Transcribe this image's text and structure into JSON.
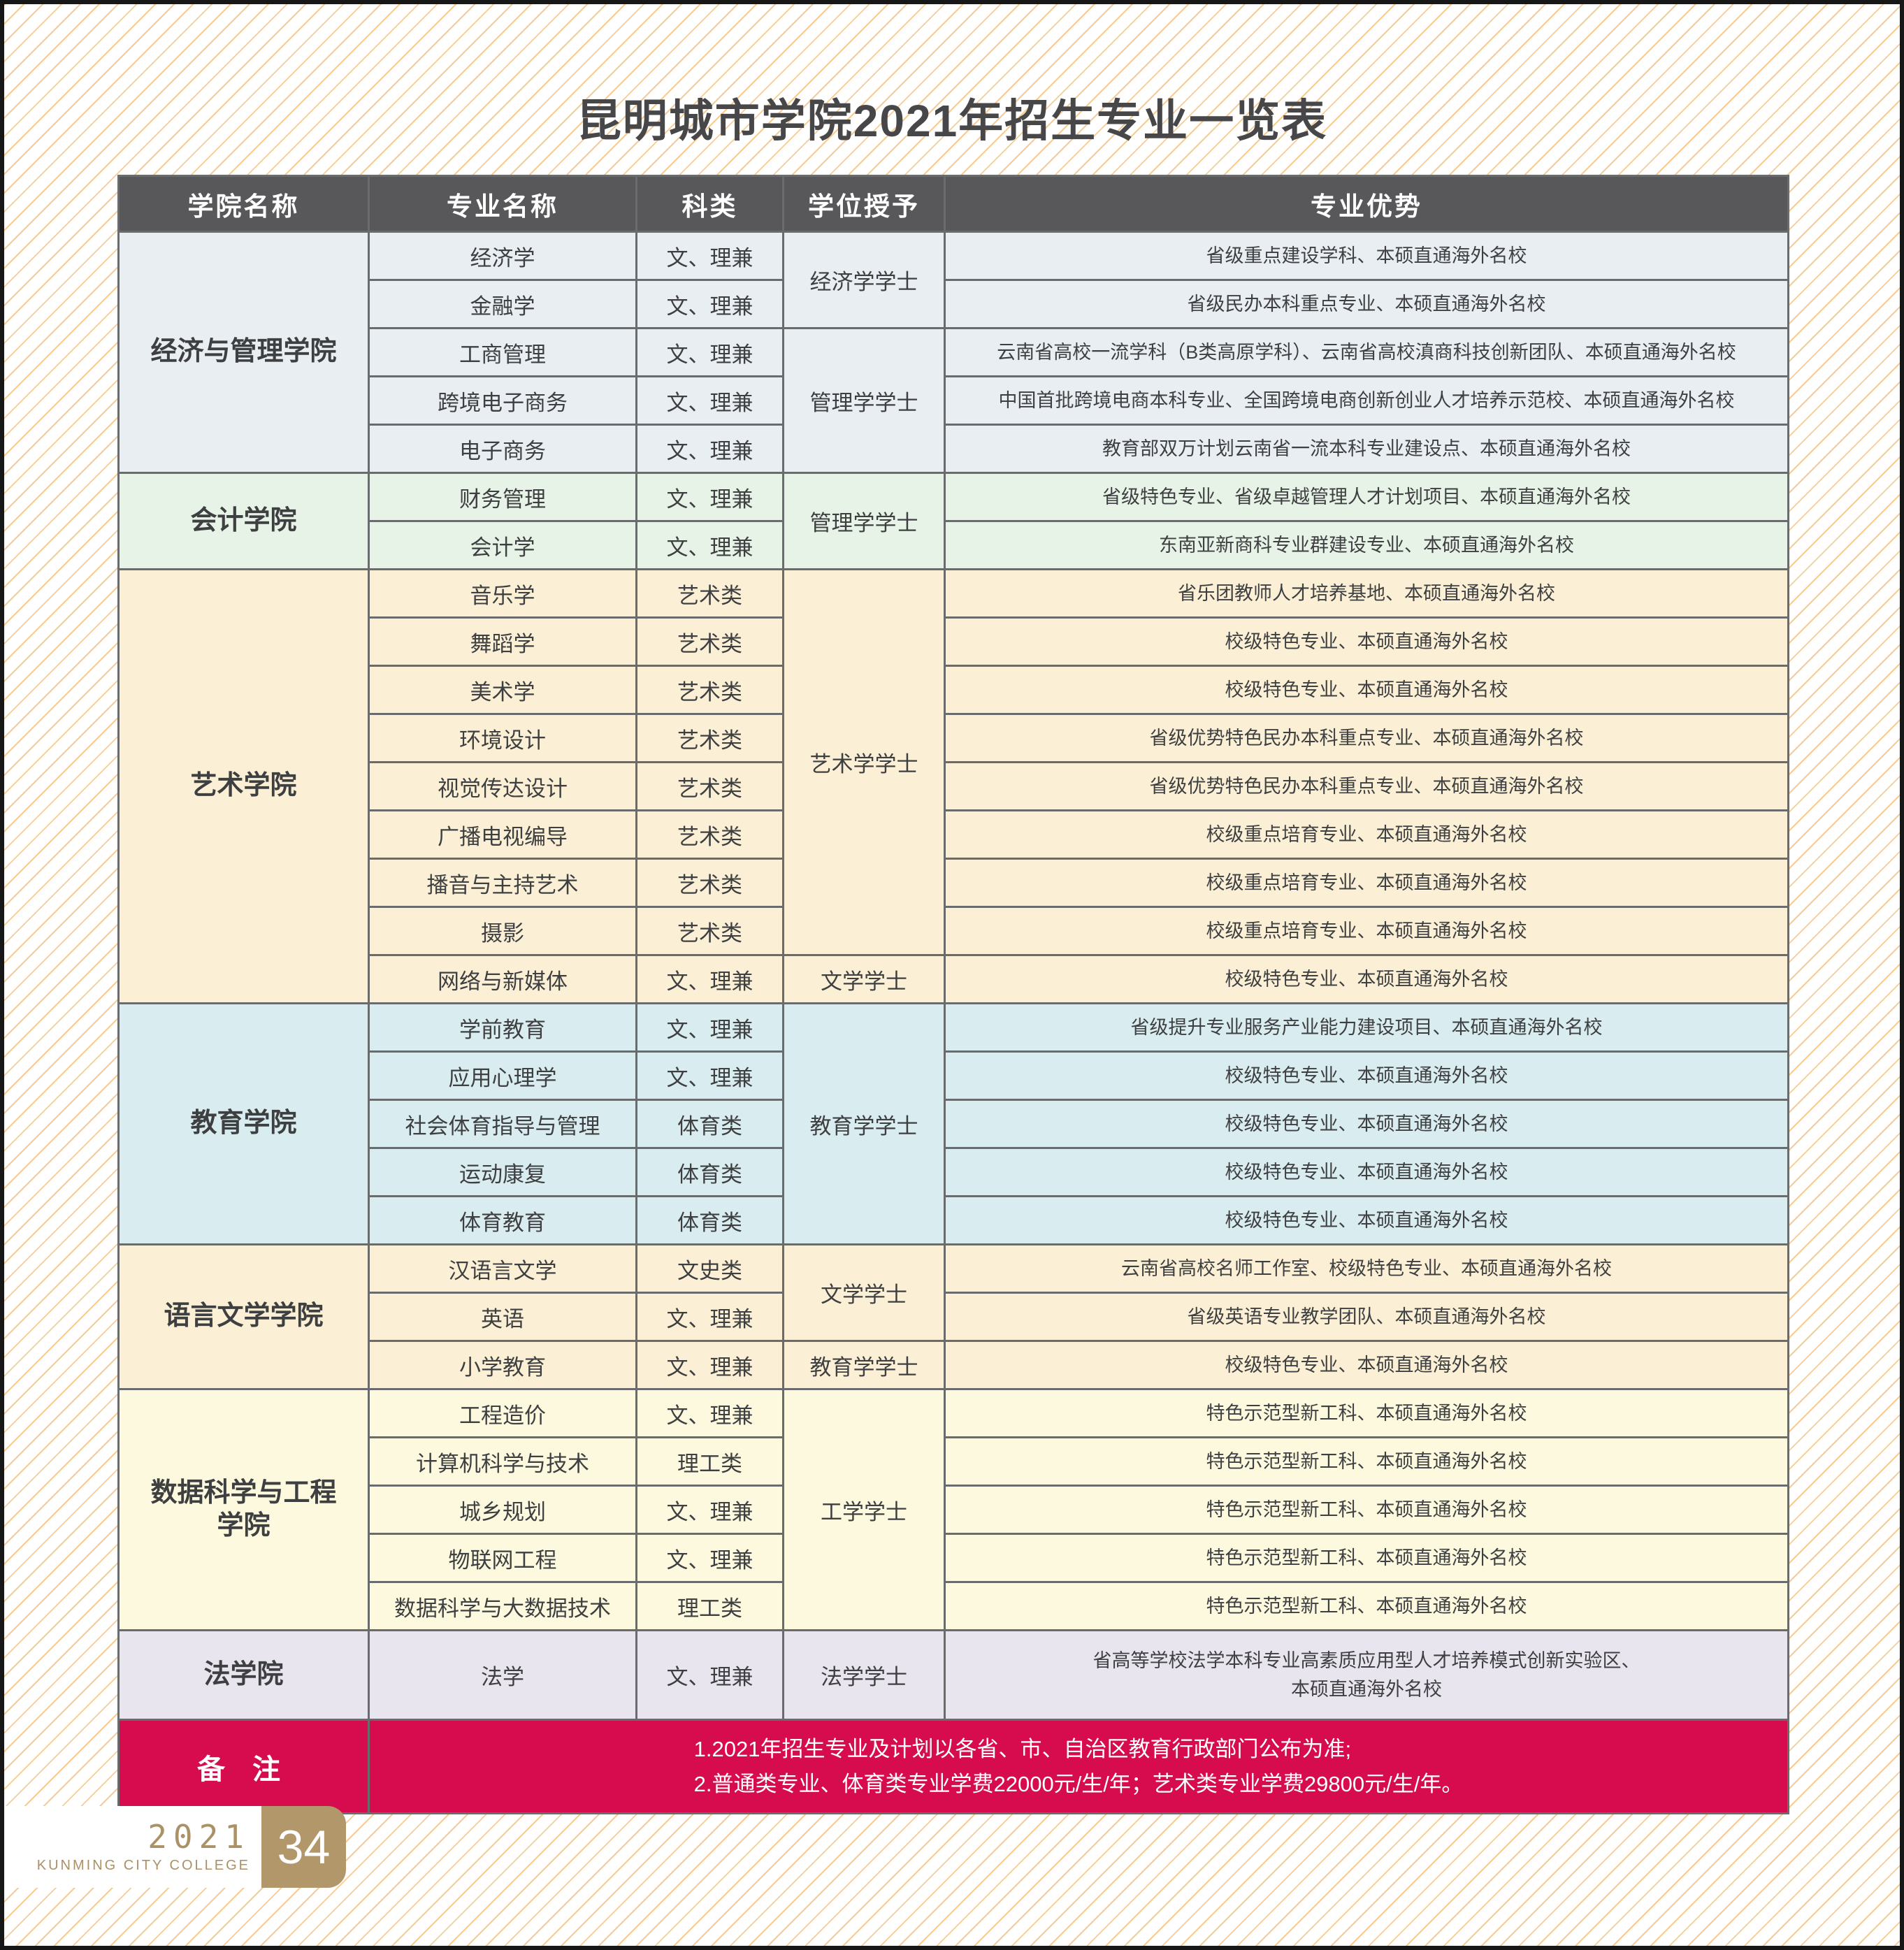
{
  "page": {
    "title": "昆明城市学院2021年招生专业一览表",
    "footer": {
      "year": "2021",
      "college_en": "KUNMING CITY COLLEGE",
      "page_number": "34"
    },
    "colors": {
      "frame_border": "#171717",
      "stripe": "#f6c98e",
      "header_bg": "#58585a",
      "table_border": "#6a6b6d",
      "note_bg": "#d70c4e",
      "footer_accent": "#b2976b"
    }
  },
  "table": {
    "headers": [
      "学院名称",
      "专业名称",
      "科类",
      "学位授予",
      "专业优势"
    ],
    "sections": [
      {
        "college": "经济与管理学院",
        "bg": "#e9eef3",
        "rows": [
          {
            "major": "经济学",
            "category": "文、理兼",
            "degree": "经济学学士",
            "degree_span": 2,
            "advantage": "省级重点建设学科、本硕直通海外名校"
          },
          {
            "major": "金融学",
            "category": "文、理兼",
            "advantage": "省级民办本科重点专业、本硕直通海外名校"
          },
          {
            "major": "工商管理",
            "category": "文、理兼",
            "degree": "管理学学士",
            "degree_span": 3,
            "advantage": "云南省高校一流学科（B类高原学科）、云南省高校滇商科技创新团队、本硕直通海外名校"
          },
          {
            "major": "跨境电子商务",
            "category": "文、理兼",
            "advantage": "中国首批跨境电商本科专业、全国跨境电商创新创业人才培养示范校、本硕直通海外名校"
          },
          {
            "major": "电子商务",
            "category": "文、理兼",
            "advantage": "教育部双万计划云南省一流本科专业建设点、本硕直通海外名校"
          }
        ]
      },
      {
        "college": "会计学院",
        "bg": "#e8f3e7",
        "rows": [
          {
            "major": "财务管理",
            "category": "文、理兼",
            "degree": "管理学学士",
            "degree_span": 2,
            "advantage": "省级特色专业、省级卓越管理人才计划项目、本硕直通海外名校"
          },
          {
            "major": "会计学",
            "category": "文、理兼",
            "advantage": "东南亚新商科专业群建设专业、本硕直通海外名校"
          }
        ]
      },
      {
        "college": "艺术学院",
        "bg": "#fbf0d5",
        "rows": [
          {
            "major": "音乐学",
            "category": "艺术类",
            "degree": "艺术学学士",
            "degree_span": 8,
            "advantage": "省乐团教师人才培养基地、本硕直通海外名校"
          },
          {
            "major": "舞蹈学",
            "category": "艺术类",
            "advantage": "校级特色专业、本硕直通海外名校"
          },
          {
            "major": "美术学",
            "category": "艺术类",
            "advantage": "校级特色专业、本硕直通海外名校"
          },
          {
            "major": "环境设计",
            "category": "艺术类",
            "advantage": "省级优势特色民办本科重点专业、本硕直通海外名校"
          },
          {
            "major": "视觉传达设计",
            "category": "艺术类",
            "advantage": "省级优势特色民办本科重点专业、本硕直通海外名校"
          },
          {
            "major": "广播电视编导",
            "category": "艺术类",
            "advantage": "校级重点培育专业、本硕直通海外名校"
          },
          {
            "major": "播音与主持艺术",
            "category": "艺术类",
            "advantage": "校级重点培育专业、本硕直通海外名校"
          },
          {
            "major": "摄影",
            "category": "艺术类",
            "advantage": "校级重点培育专业、本硕直通海外名校"
          },
          {
            "major": "网络与新媒体",
            "category": "文、理兼",
            "degree": "文学学士",
            "degree_span": 1,
            "advantage": "校级特色专业、本硕直通海外名校"
          }
        ]
      },
      {
        "college": "教育学院",
        "bg": "#d9ecf0",
        "rows": [
          {
            "major": "学前教育",
            "category": "文、理兼",
            "degree": "教育学学士",
            "degree_span": 5,
            "advantage": "省级提升专业服务产业能力建设项目、本硕直通海外名校"
          },
          {
            "major": "应用心理学",
            "category": "文、理兼",
            "advantage": "校级特色专业、本硕直通海外名校"
          },
          {
            "major": "社会体育指导与管理",
            "category": "体育类",
            "advantage": "校级特色专业、本硕直通海外名校"
          },
          {
            "major": "运动康复",
            "category": "体育类",
            "advantage": "校级特色专业、本硕直通海外名校"
          },
          {
            "major": "体育教育",
            "category": "体育类",
            "advantage": "校级特色专业、本硕直通海外名校"
          }
        ]
      },
      {
        "college": "语言文学学院",
        "bg": "#fbf0d5",
        "rows": [
          {
            "major": "汉语言文学",
            "category": "文史类",
            "degree": "文学学士",
            "degree_span": 2,
            "advantage": "云南省高校名师工作室、校级特色专业、本硕直通海外名校"
          },
          {
            "major": "英语",
            "category": "文、理兼",
            "advantage": "省级英语专业教学团队、本硕直通海外名校"
          },
          {
            "major": "小学教育",
            "category": "文、理兼",
            "degree": "教育学学士",
            "degree_span": 1,
            "advantage": "校级特色专业、本硕直通海外名校"
          }
        ]
      },
      {
        "college": "数据科学与工程\n学院",
        "bg": "#fcf9de",
        "rows": [
          {
            "major": "工程造价",
            "category": "文、理兼",
            "degree": "工学学士",
            "degree_span": 5,
            "advantage": "特色示范型新工科、本硕直通海外名校"
          },
          {
            "major": "计算机科学与技术",
            "category": "理工类",
            "advantage": "特色示范型新工科、本硕直通海外名校"
          },
          {
            "major": "城乡规划",
            "category": "文、理兼",
            "advantage": "特色示范型新工科、本硕直通海外名校"
          },
          {
            "major": "物联网工程",
            "category": "文、理兼",
            "advantage": "特色示范型新工科、本硕直通海外名校"
          },
          {
            "major": "数据科学与大数据技术",
            "category": "理工类",
            "advantage": "特色示范型新工科、本硕直通海外名校"
          }
        ]
      },
      {
        "college": "法学院",
        "bg": "#e8e5ef",
        "rows": [
          {
            "major": "法学",
            "category": "文、理兼",
            "degree": "法学学士",
            "degree_span": 1,
            "advantage": "省高等学校法学本科专业高素质应用型人才培养模式创新实验区、\n本硕直通海外名校",
            "tall": true
          }
        ]
      }
    ],
    "note": {
      "label": "备 注",
      "bg": "#d70c4e",
      "lines": [
        "1.2021年招生专业及计划以各省、市、自治区教育行政部门公布为准;",
        "2.普通类专业、体育类专业学费22000元/生/年；艺术类专业学费29800元/生/年。"
      ]
    }
  }
}
